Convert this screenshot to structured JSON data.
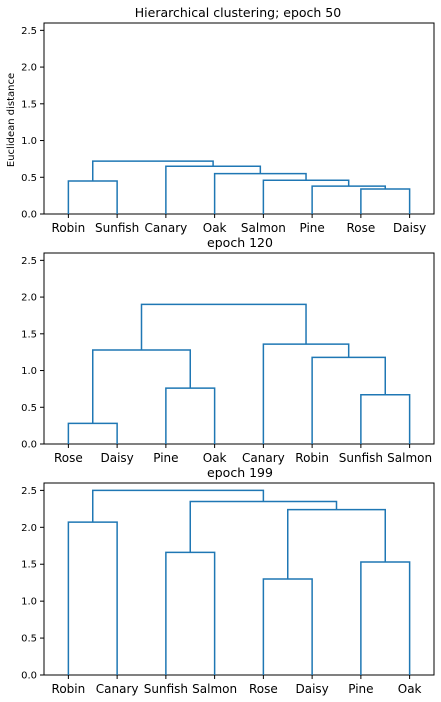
{
  "chart_data": [
    {
      "type": "dendrogram",
      "title": "Hierarchical clustering; epoch 50",
      "ylabel": "Euclidean distance",
      "xlabel": "",
      "ylim": [
        0,
        2.6
      ],
      "yticks": [
        "0.0",
        "0.5",
        "1.0",
        "1.5",
        "2.0",
        "2.5"
      ],
      "leaves": [
        "Robin",
        "Sunfish",
        "Canary",
        "Oak",
        "Salmon",
        "Pine",
        "Rose",
        "Daisy"
      ],
      "merges": [
        {
          "left": "Robin",
          "right": "Sunfish",
          "height": 0.45
        },
        {
          "left": "Rose",
          "right": "Daisy",
          "height": 0.34
        },
        {
          "left": "Pine",
          "right": "Rose+Daisy",
          "height": 0.38
        },
        {
          "left": "Salmon",
          "right": "Pine+Rose+Daisy",
          "height": 0.46
        },
        {
          "left": "Oak",
          "right": "Salmon+Pine+Rose+Daisy",
          "height": 0.55
        },
        {
          "left": "Canary",
          "right": "Oak+Salmon+Pine+Rose+Daisy",
          "height": 0.65
        },
        {
          "left": "Robin+Sunfish",
          "right": "Canary+Oak+Salmon+Pine+Rose+Daisy",
          "height": 0.72
        }
      ],
      "color": "#1f77b4"
    },
    {
      "type": "dendrogram",
      "title": "epoch 120",
      "ylabel": "",
      "xlabel": "",
      "ylim": [
        0,
        2.6
      ],
      "yticks": [
        "0.0",
        "0.5",
        "1.0",
        "1.5",
        "2.0",
        "2.5"
      ],
      "leaves": [
        "Rose",
        "Daisy",
        "Pine",
        "Oak",
        "Canary",
        "Robin",
        "Sunfish",
        "Salmon"
      ],
      "merges": [
        {
          "left": "Rose",
          "right": "Daisy",
          "height": 0.28
        },
        {
          "left": "Pine",
          "right": "Oak",
          "height": 0.76
        },
        {
          "left": "Rose+Daisy",
          "right": "Pine+Oak",
          "height": 1.28
        },
        {
          "left": "Sunfish",
          "right": "Salmon",
          "height": 0.67
        },
        {
          "left": "Robin",
          "right": "Sunfish+Salmon",
          "height": 1.18
        },
        {
          "left": "Canary",
          "right": "Robin+Sunfish+Salmon",
          "height": 1.36
        },
        {
          "left": "Rose+Daisy+Pine+Oak",
          "right": "Canary+Robin+Sunfish+Salmon",
          "height": 1.9
        }
      ],
      "color": "#1f77b4"
    },
    {
      "type": "dendrogram",
      "title": "epoch 199",
      "ylabel": "",
      "xlabel": "",
      "ylim": [
        0,
        2.6
      ],
      "yticks": [
        "0.0",
        "0.5",
        "1.0",
        "1.5",
        "2.0",
        "2.5"
      ],
      "leaves": [
        "Robin",
        "Canary",
        "Sunfish",
        "Salmon",
        "Rose",
        "Daisy",
        "Pine",
        "Oak"
      ],
      "merges": [
        {
          "left": "Robin",
          "right": "Canary",
          "height": 2.07
        },
        {
          "left": "Sunfish",
          "right": "Salmon",
          "height": 1.66
        },
        {
          "left": "Rose",
          "right": "Daisy",
          "height": 1.3
        },
        {
          "left": "Pine",
          "right": "Oak",
          "height": 1.53
        },
        {
          "left": "Rose+Daisy",
          "right": "Pine+Oak",
          "height": 2.24
        },
        {
          "left": "Sunfish+Salmon",
          "right": "Rose+Daisy+Pine+Oak",
          "height": 2.35
        },
        {
          "left": "Robin+Canary",
          "right": "Sunfish+Salmon+Rose+Daisy+Pine+Oak",
          "height": 2.5
        }
      ],
      "color": "#1f77b4"
    }
  ]
}
